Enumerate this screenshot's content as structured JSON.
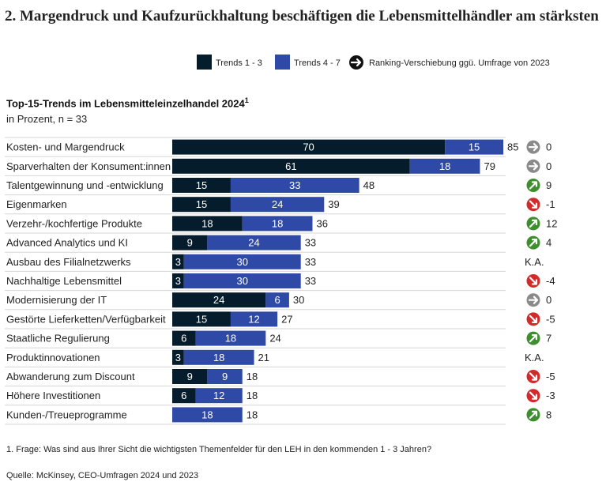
{
  "title": "2. Margendruck und Kaufzurückhaltung beschäftigen die Lebensmittelhändler am stärksten",
  "chart_data": {
    "type": "bar",
    "orientation": "horizontal",
    "stacked": true,
    "title": "Top-15-Trends im Lebensmitteleinzelhandel 2024",
    "title_footnote_marker": "1",
    "unit_label": "in Prozent, n = 33",
    "xlim": [
      0,
      85
    ],
    "categories": [
      "Kosten- und Margendruck",
      "Sparverhalten der Konsument:innen",
      "Talentgewinnung und -entwicklung",
      "Eigenmarken",
      "Verzehr-/kochfertige Produkte",
      "Advanced Analytics und KI",
      "Ausbau des Filialnetzwerks",
      "Nachhaltige Lebensmittel",
      "Modernisierung der IT",
      "Gestörte Lieferketten/Verfügbarkeit",
      "Staatliche Regulierung",
      "Produktinnovationen",
      "Abwanderung zum Discount",
      "Höhere Investitionen",
      "Kunden-/Treueprogramme"
    ],
    "series": [
      {
        "name": "Trends 1 - 3",
        "color": "#051c2c",
        "values": [
          70,
          61,
          15,
          15,
          18,
          9,
          3,
          3,
          24,
          15,
          6,
          3,
          9,
          6,
          0
        ]
      },
      {
        "name": "Trends 4 - 7",
        "color": "#2f4aa6",
        "values": [
          15,
          18,
          33,
          24,
          18,
          24,
          30,
          30,
          6,
          12,
          18,
          18,
          9,
          12,
          18
        ]
      }
    ],
    "totals": [
      85,
      79,
      48,
      39,
      36,
      33,
      33,
      33,
      30,
      27,
      24,
      21,
      18,
      18,
      18
    ],
    "ranking_shift": {
      "legend_label": "Ranking-Verschiebung ggü. Umfrage von 2023",
      "values": [
        "0",
        "0",
        "9",
        "-1",
        "12",
        "4",
        "K.A.",
        "-4",
        "0",
        "-5",
        "7",
        "K.A.",
        "-5",
        "-3",
        "8"
      ],
      "directions": [
        "none",
        "none",
        "up",
        "down",
        "up",
        "up",
        "na",
        "down",
        "none",
        "down",
        "up",
        "na",
        "down",
        "down",
        "up"
      ],
      "colors": {
        "up": "#3d8f2e",
        "down": "#d22b2b",
        "none": "#8a8a8a"
      }
    }
  },
  "footnote": "1.  Frage: Was sind aus Ihrer Sicht die wichtigsten Themenfelder für den LEH in den kommenden 1 - 3 Jahren?",
  "source": "Quelle: McKinsey, CEO-Umfragen 2024 und 2023"
}
